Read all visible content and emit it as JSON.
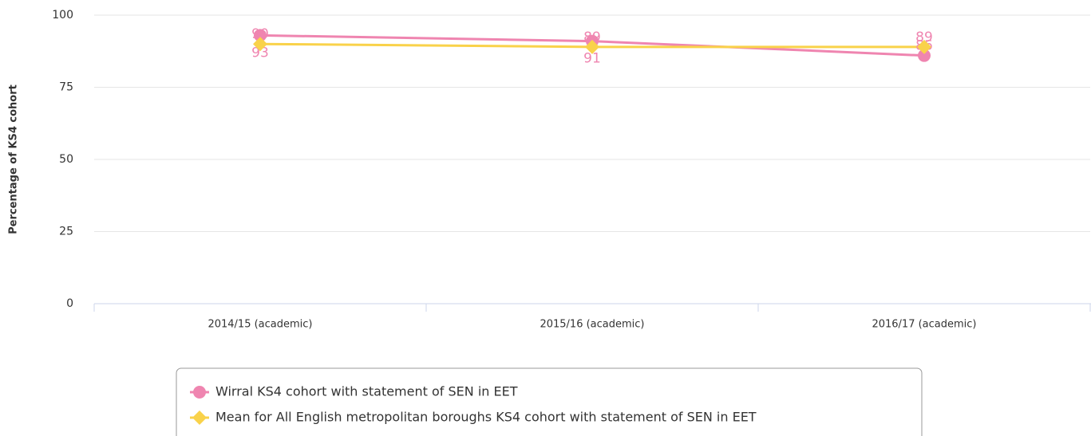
{
  "chart_data": {
    "type": "line",
    "y_label": "Percentage of KS4 cohort",
    "categories": [
      "2014/15 (academic)",
      "2015/16 (academic)",
      "2016/17 (academic)"
    ],
    "series": [
      {
        "name": "Wirral KS4 cohort with statement of SEN in EET",
        "color": "#ef85b0",
        "marker": "circle",
        "values": [
          93,
          91,
          86
        ]
      },
      {
        "name": "Mean for All English metropolitan boroughs KS4 cohort with statement of SEN in EET",
        "color": "#f9d24a",
        "marker": "diamond",
        "values": [
          90,
          89,
          89
        ]
      }
    ],
    "ylim": [
      0,
      100
    ],
    "yticks": [
      0,
      25,
      50,
      75,
      100
    ],
    "grid": true,
    "legend": "bottom"
  }
}
